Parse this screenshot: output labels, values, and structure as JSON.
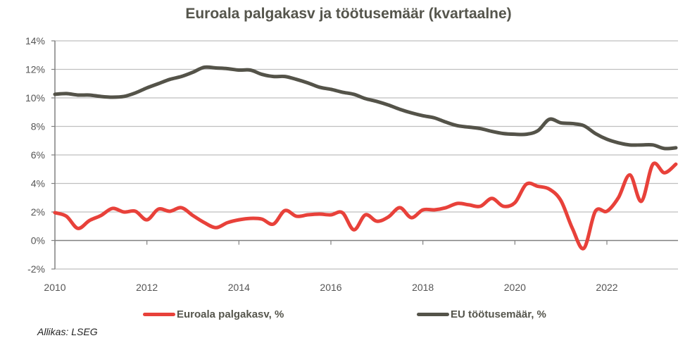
{
  "chart_data": {
    "type": "line",
    "title": "Euroala palgakasv ja töötusemäär (kvartaalne)",
    "xlabel": "",
    "ylabel": "",
    "ylim": [
      -2,
      14
    ],
    "xlim": [
      2010,
      2023.5
    ],
    "yticks": [
      -2,
      0,
      2,
      4,
      6,
      8,
      10,
      12,
      14
    ],
    "ytick_labels": [
      "-2%",
      "0%",
      "2%",
      "4%",
      "6%",
      "8%",
      "10%",
      "12%",
      "14%"
    ],
    "xticks": [
      2010,
      2012,
      2014,
      2016,
      2018,
      2020,
      2022
    ],
    "xtick_labels": [
      "2010",
      "2012",
      "2014",
      "2016",
      "2018",
      "2020",
      "2022"
    ],
    "grid": true,
    "legend_position": "bottom",
    "x_start": 2010,
    "x_step": 0.25,
    "series": [
      {
        "name": "Euroala palgakasv, %",
        "color": "#e8413a",
        "values": [
          1.95,
          1.7,
          0.85,
          1.4,
          1.75,
          2.25,
          2.0,
          2.05,
          1.45,
          2.2,
          2.05,
          2.3,
          1.75,
          1.25,
          0.9,
          1.25,
          1.45,
          1.55,
          1.5,
          1.15,
          2.1,
          1.7,
          1.8,
          1.85,
          1.8,
          1.95,
          0.75,
          1.8,
          1.35,
          1.65,
          2.3,
          1.6,
          2.15,
          2.15,
          2.3,
          2.6,
          2.5,
          2.4,
          2.95,
          2.4,
          2.65,
          3.95,
          3.8,
          3.6,
          2.8,
          0.85,
          -0.55,
          2.05,
          2.05,
          3.0,
          4.6,
          2.75,
          5.35,
          4.75,
          5.35
        ]
      },
      {
        "name": "EU töötusemäär, %",
        "color": "#545349",
        "values": [
          10.25,
          10.3,
          10.2,
          10.2,
          10.1,
          10.05,
          10.1,
          10.35,
          10.7,
          11.0,
          11.3,
          11.5,
          11.8,
          12.15,
          12.1,
          12.05,
          11.95,
          11.95,
          11.65,
          11.5,
          11.5,
          11.3,
          11.05,
          10.75,
          10.6,
          10.4,
          10.25,
          9.95,
          9.75,
          9.5,
          9.2,
          8.95,
          8.75,
          8.6,
          8.3,
          8.05,
          7.95,
          7.85,
          7.65,
          7.5,
          7.45,
          7.45,
          7.7,
          8.5,
          8.25,
          8.2,
          8.05,
          7.5,
          7.1,
          6.85,
          6.7,
          6.7,
          6.7,
          6.45,
          6.5
        ]
      }
    ]
  },
  "source": "Allikas: LSEG"
}
